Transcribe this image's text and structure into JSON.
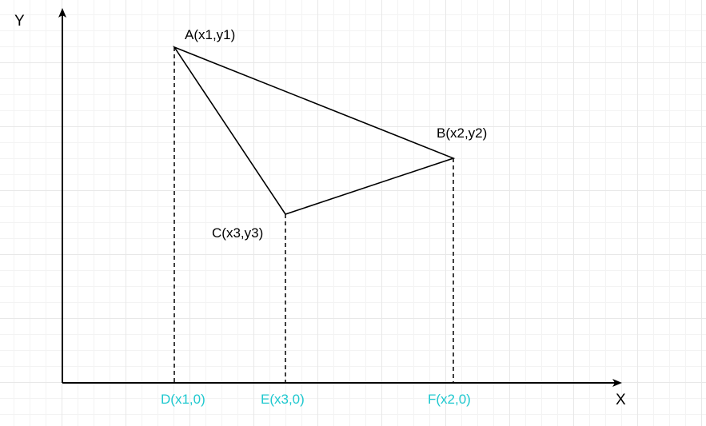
{
  "axes": {
    "x_label": "X",
    "y_label": "Y"
  },
  "points": {
    "A": "A(x1,y1)",
    "B": "B(x2,y2)",
    "C": "C(x3,y3)",
    "D": "D(x1,0)",
    "E": "E(x3,0)",
    "F": "F(x2,0)"
  },
  "colors": {
    "line": "#000000",
    "foot_label": "#1fc8cf",
    "grid_major": "#e8e8e8",
    "grid_minor": "#f3f3f3"
  }
}
